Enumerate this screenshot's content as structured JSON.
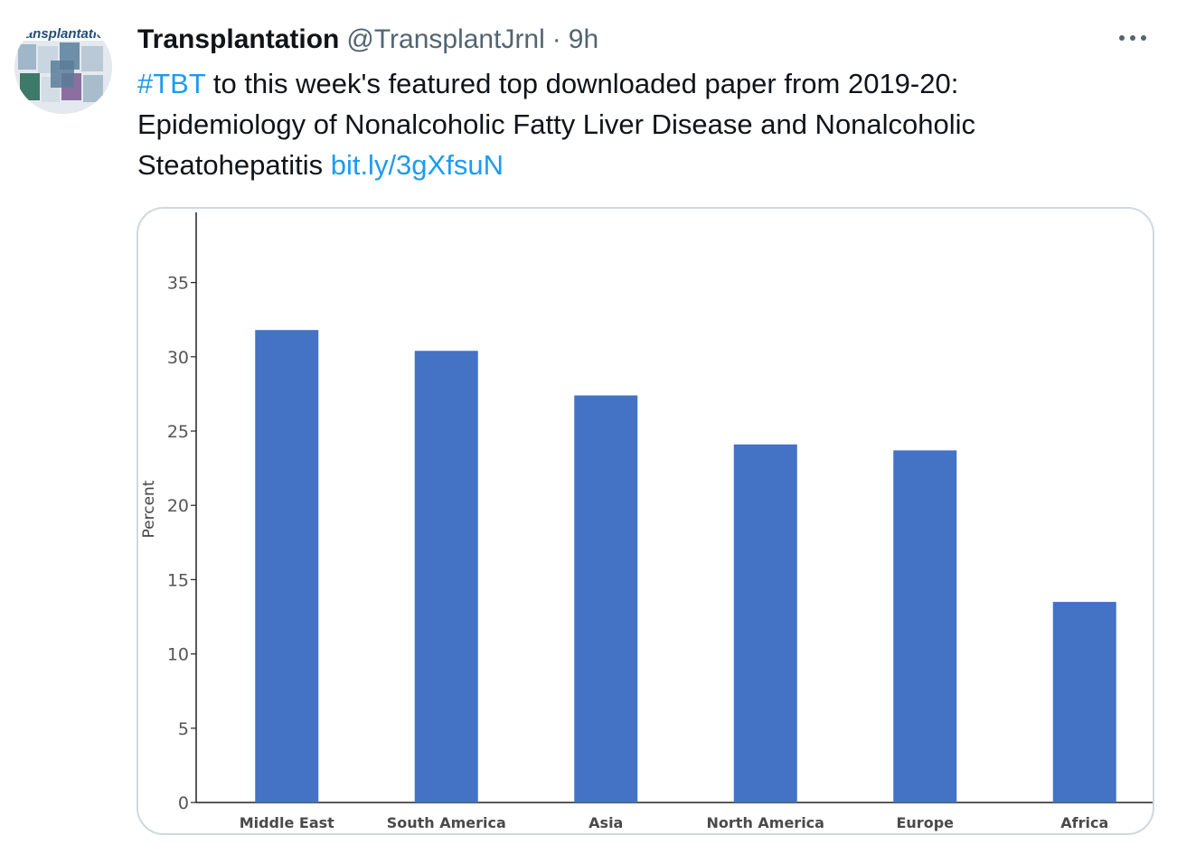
{
  "tweet": {
    "display_name": "Transplantation",
    "handle": "@TransplantJrnl",
    "separator": "·",
    "time": "9h",
    "hashtag": "#TBT",
    "text_line1": " to this week's featured top downloaded paper from 2019-20:",
    "text_line2": "Epidemiology of Nonalcoholic Fatty Liver Disease and Nonalcoholic",
    "text_line3": "Steatohepatitis ",
    "link": "bit.ly/3gXfsuN"
  },
  "avatar": {
    "logo_text": "ransplantation",
    "icon": "journal-covers-avatar"
  },
  "colors": {
    "link": "#1d9bf0",
    "bar": "#4472c4",
    "muted": "#536471",
    "border": "#cfd9de"
  },
  "chart_data": {
    "type": "bar",
    "categories": [
      "Middle East",
      "South America",
      "Asia",
      "North America",
      "Europe",
      "Africa"
    ],
    "values": [
      31.8,
      30.4,
      27.4,
      24.1,
      23.7,
      13.5
    ],
    "ylabel": "Percent",
    "yticks": [
      0,
      5,
      10,
      15,
      20,
      25,
      30,
      35
    ],
    "ylim": [
      0,
      40
    ],
    "grid": false,
    "legend": "none"
  }
}
